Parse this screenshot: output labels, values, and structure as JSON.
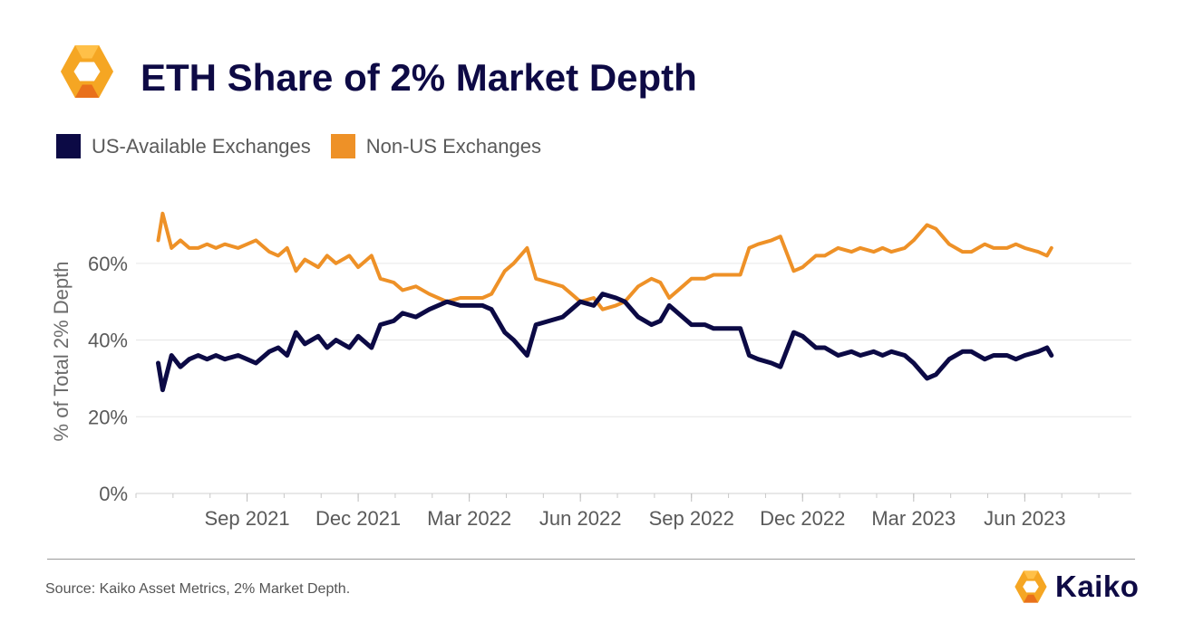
{
  "header": {
    "title": "ETH Share of 2% Market Depth",
    "logo_icon": "kaiko-logo-icon"
  },
  "legend": {
    "items": [
      {
        "label": "US-Available Exchanges",
        "color": "#0c0a45"
      },
      {
        "label": "Non-US Exchanges",
        "color": "#ee9127"
      }
    ]
  },
  "chart_data": {
    "type": "line",
    "title": "ETH Share of 2% Market Depth",
    "xlabel": "",
    "ylabel": "% of Total 2% Depth",
    "ylim": [
      0,
      72
    ],
    "yticks": [
      0,
      20,
      40,
      60
    ],
    "ytick_labels": [
      "0%",
      "20%",
      "40%",
      "60%"
    ],
    "xlim": [
      2021.42,
      2023.66
    ],
    "xticks": [
      2021.67,
      2021.92,
      2022.17,
      2022.42,
      2022.67,
      2022.92,
      2023.17,
      2023.42
    ],
    "xtick_labels": [
      "Sep 2021",
      "Dec 2021",
      "Mar 2022",
      "Jun 2022",
      "Sep 2022",
      "Dec 2022",
      "Mar 2023",
      "Jun 2023"
    ],
    "grid": true,
    "series": [
      {
        "name": "US-Available Exchanges",
        "color": "#0c0a45",
        "x": [
          2021.47,
          2021.48,
          2021.5,
          2021.52,
          2021.54,
          2021.56,
          2021.58,
          2021.6,
          2021.62,
          2021.65,
          2021.67,
          2021.69,
          2021.72,
          2021.74,
          2021.76,
          2021.78,
          2021.8,
          2021.83,
          2021.85,
          2021.87,
          2021.9,
          2021.92,
          2021.95,
          2021.97,
          2022.0,
          2022.02,
          2022.05,
          2022.08,
          2022.1,
          2022.12,
          2022.15,
          2022.17,
          2022.2,
          2022.22,
          2022.25,
          2022.27,
          2022.3,
          2022.32,
          2022.35,
          2022.38,
          2022.4,
          2022.42,
          2022.45,
          2022.47,
          2022.5,
          2022.52,
          2022.55,
          2022.58,
          2022.6,
          2022.62,
          2022.65,
          2022.67,
          2022.7,
          2022.72,
          2022.75,
          2022.78,
          2022.8,
          2022.82,
          2022.85,
          2022.87,
          2022.9,
          2022.92,
          2022.95,
          2022.97,
          2023.0,
          2023.03,
          2023.05,
          2023.08,
          2023.1,
          2023.12,
          2023.15,
          2023.17,
          2023.2,
          2023.22,
          2023.25,
          2023.28,
          2023.3,
          2023.33,
          2023.35,
          2023.38,
          2023.4,
          2023.42,
          2023.45,
          2023.47,
          2023.48
        ],
        "values": [
          34,
          27,
          36,
          33,
          35,
          36,
          35,
          36,
          35,
          36,
          35,
          34,
          37,
          38,
          36,
          42,
          39,
          41,
          38,
          40,
          38,
          41,
          38,
          44,
          45,
          47,
          46,
          48,
          49,
          50,
          49,
          49,
          49,
          48,
          42,
          40,
          36,
          44,
          45,
          46,
          48,
          50,
          49,
          52,
          51,
          50,
          46,
          44,
          45,
          49,
          46,
          44,
          44,
          43,
          43,
          43,
          36,
          35,
          34,
          33,
          42,
          41,
          38,
          38,
          36,
          37,
          36,
          37,
          36,
          37,
          36,
          34,
          30,
          31,
          35,
          37,
          37,
          35,
          36,
          36,
          35,
          36,
          37,
          38,
          36
        ]
      },
      {
        "name": "Non-US Exchanges",
        "color": "#ee9127",
        "x": [
          2021.47,
          2021.48,
          2021.5,
          2021.52,
          2021.54,
          2021.56,
          2021.58,
          2021.6,
          2021.62,
          2021.65,
          2021.67,
          2021.69,
          2021.72,
          2021.74,
          2021.76,
          2021.78,
          2021.8,
          2021.83,
          2021.85,
          2021.87,
          2021.9,
          2021.92,
          2021.95,
          2021.97,
          2022.0,
          2022.02,
          2022.05,
          2022.08,
          2022.1,
          2022.12,
          2022.15,
          2022.17,
          2022.2,
          2022.22,
          2022.25,
          2022.27,
          2022.3,
          2022.32,
          2022.35,
          2022.38,
          2022.4,
          2022.42,
          2022.45,
          2022.47,
          2022.5,
          2022.52,
          2022.55,
          2022.58,
          2022.6,
          2022.62,
          2022.65,
          2022.67,
          2022.7,
          2022.72,
          2022.75,
          2022.78,
          2022.8,
          2022.82,
          2022.85,
          2022.87,
          2022.9,
          2022.92,
          2022.95,
          2022.97,
          2023.0,
          2023.03,
          2023.05,
          2023.08,
          2023.1,
          2023.12,
          2023.15,
          2023.17,
          2023.2,
          2023.22,
          2023.25,
          2023.28,
          2023.3,
          2023.33,
          2023.35,
          2023.38,
          2023.4,
          2023.42,
          2023.45,
          2023.47,
          2023.48
        ],
        "values": [
          66,
          73,
          64,
          66,
          64,
          64,
          65,
          64,
          65,
          64,
          65,
          66,
          63,
          62,
          64,
          58,
          61,
          59,
          62,
          60,
          62,
          59,
          62,
          56,
          55,
          53,
          54,
          52,
          51,
          50,
          51,
          51,
          51,
          52,
          58,
          60,
          64,
          56,
          55,
          54,
          52,
          50,
          51,
          48,
          49,
          50,
          54,
          56,
          55,
          51,
          54,
          56,
          56,
          57,
          57,
          57,
          64,
          65,
          66,
          67,
          58,
          59,
          62,
          62,
          64,
          63,
          64,
          63,
          64,
          63,
          64,
          66,
          70,
          69,
          65,
          63,
          63,
          65,
          64,
          64,
          65,
          64,
          63,
          62,
          64
        ]
      }
    ]
  },
  "footer": {
    "source": "Source: Kaiko Asset Metrics, 2% Market Depth.",
    "brand_name": "Kaiko",
    "brand_icon": "kaiko-logo-icon"
  }
}
